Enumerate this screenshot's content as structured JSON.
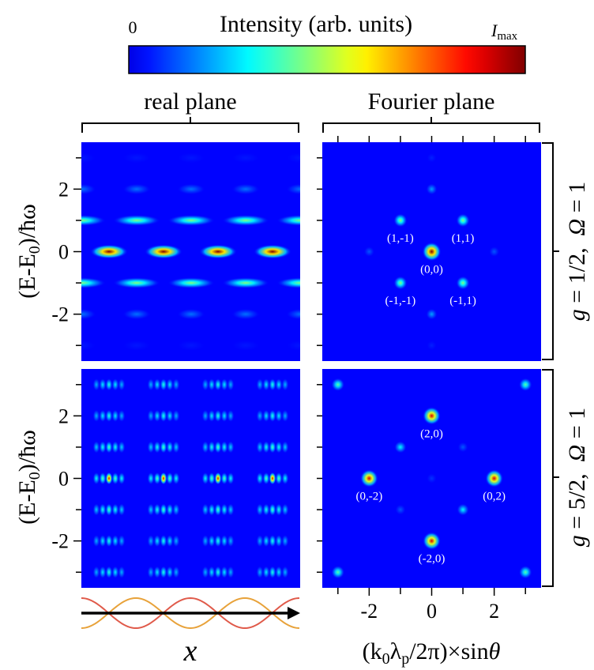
{
  "colorbar": {
    "title": "Intensity (arb. units)",
    "ticks": [
      0,
      {
        "value": 1,
        "label": "I",
        "label_sub": "max"
      }
    ]
  },
  "headers": [
    "real plane",
    "Fourier plane"
  ],
  "row_labels": [
    [
      "g",
      " = 1/2,  ",
      "Ω",
      " = 1"
    ],
    [
      "g",
      " = 5/2,  ",
      "Ω",
      " = 1"
    ]
  ],
  "ylabel": [
    "(E-E",
    "0",
    ")/ħω"
  ],
  "xlabel": [
    "(k",
    "0",
    "λ",
    "p",
    "/2π)×sin",
    "θ"
  ],
  "real_xlabel": "x",
  "chart_data": [
    {
      "type": "heatmap",
      "ylim": [
        -3.5,
        3.5
      ],
      "yticks": [
        -2,
        0,
        2
      ],
      "yminor": [
        -3,
        -1,
        1,
        3
      ],
      "y": [
        -3,
        -2,
        -1,
        0,
        1,
        2,
        3
      ],
      "values": [
        0.05,
        0.15,
        0.45,
        1,
        0.45,
        0.15,
        0.05
      ]
    },
    {
      "type": "scatter",
      "xlim": [
        -3.5,
        3.5
      ],
      "ylim": [
        -3.5,
        3.5
      ],
      "xminor": [
        -3,
        -2,
        -1,
        0,
        1,
        2,
        3
      ],
      "yminor": [
        -3,
        -2,
        -1,
        0,
        1,
        2,
        3
      ],
      "x": [
        0,
        -1,
        1,
        -1,
        1,
        0,
        0,
        -2,
        2,
        0,
        0
      ],
      "y": [
        0,
        1,
        1,
        -1,
        -1,
        2,
        -2,
        0,
        0,
        3,
        -3
      ],
      "intensity": [
        1,
        0.45,
        0.45,
        0.45,
        0.45,
        0.2,
        0.2,
        0.12,
        0.12,
        0.06,
        0.06
      ],
      "labels": [
        "(0,0)",
        "(1,-1)",
        "(1,1)",
        "(-1,-1)",
        "(-1,1)",
        null,
        null,
        null,
        null,
        null,
        null
      ]
    },
    {
      "type": "heatmap",
      "ylim": [
        -3.5,
        3.5
      ],
      "yticks": [
        -2,
        0,
        2
      ],
      "yminor": [
        -3,
        -1,
        1,
        3
      ],
      "y": [
        -3,
        -2,
        -1,
        0,
        1,
        2,
        3
      ],
      "values": [
        0.35,
        0.35,
        0.4,
        0.9,
        0.4,
        0.35,
        0.35
      ]
    },
    {
      "type": "scatter",
      "xlim": [
        -3.5,
        3.5
      ],
      "ylim": [
        -3.5,
        3.5
      ],
      "xticks": [
        -2,
        0,
        2
      ],
      "xminor": [
        -3,
        -1,
        1,
        3
      ],
      "yminor": [
        -3,
        -2,
        -1,
        0,
        1,
        2,
        3
      ],
      "x": [
        0,
        -2,
        2,
        0,
        -3,
        3,
        -3,
        3,
        -1,
        1,
        1,
        -1,
        0
      ],
      "y": [
        2,
        0,
        0,
        -2,
        3,
        3,
        -3,
        -3,
        1,
        -1,
        1,
        -1,
        0
      ],
      "intensity": [
        0.9,
        0.9,
        0.9,
        0.9,
        0.4,
        0.4,
        0.4,
        0.4,
        0.3,
        0.3,
        0.12,
        0.12,
        0.08
      ],
      "labels": [
        "(2,0)",
        "(0,-2)",
        "(0,2)",
        "(-2,0)",
        null,
        null,
        null,
        null,
        null,
        null,
        null,
        null,
        null
      ]
    }
  ]
}
